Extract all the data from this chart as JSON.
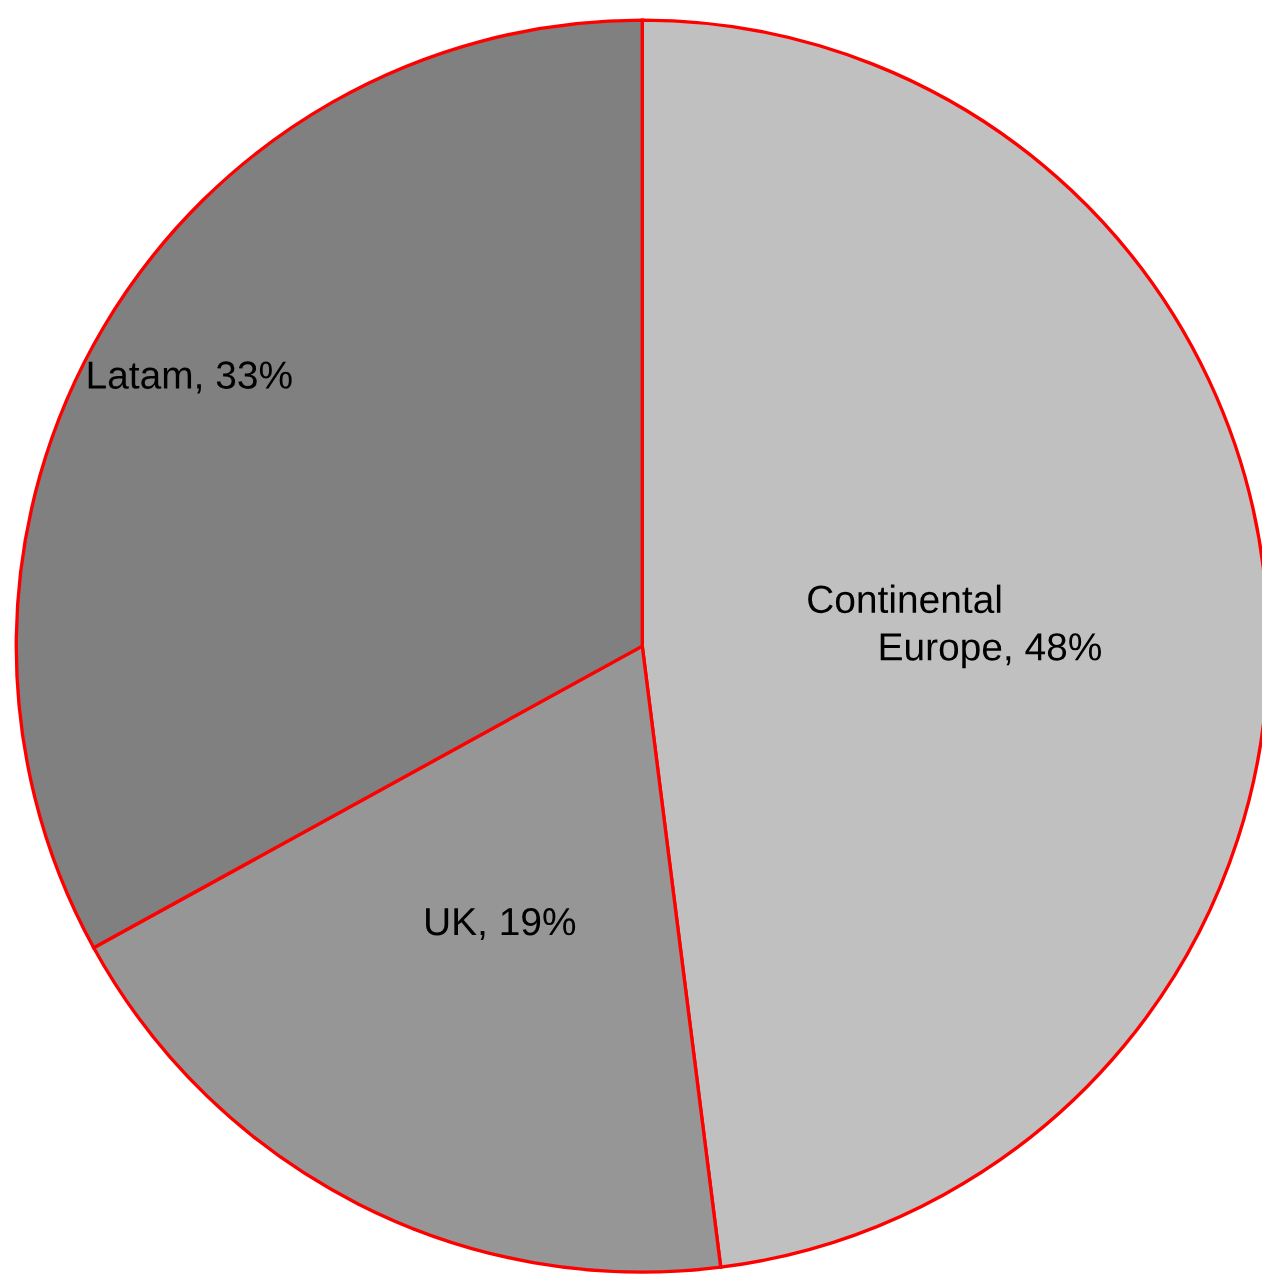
{
  "chart_data": {
    "type": "pie",
    "categories": [
      "Continental Europe",
      "UK",
      "Latam"
    ],
    "values": [
      48,
      19,
      33
    ],
    "colors": [
      "#c0c0c0",
      "#969696",
      "#808080"
    ],
    "value_labels": [
      ", 48%",
      ", 19%",
      ", 33%"
    ],
    "legend": false
  }
}
